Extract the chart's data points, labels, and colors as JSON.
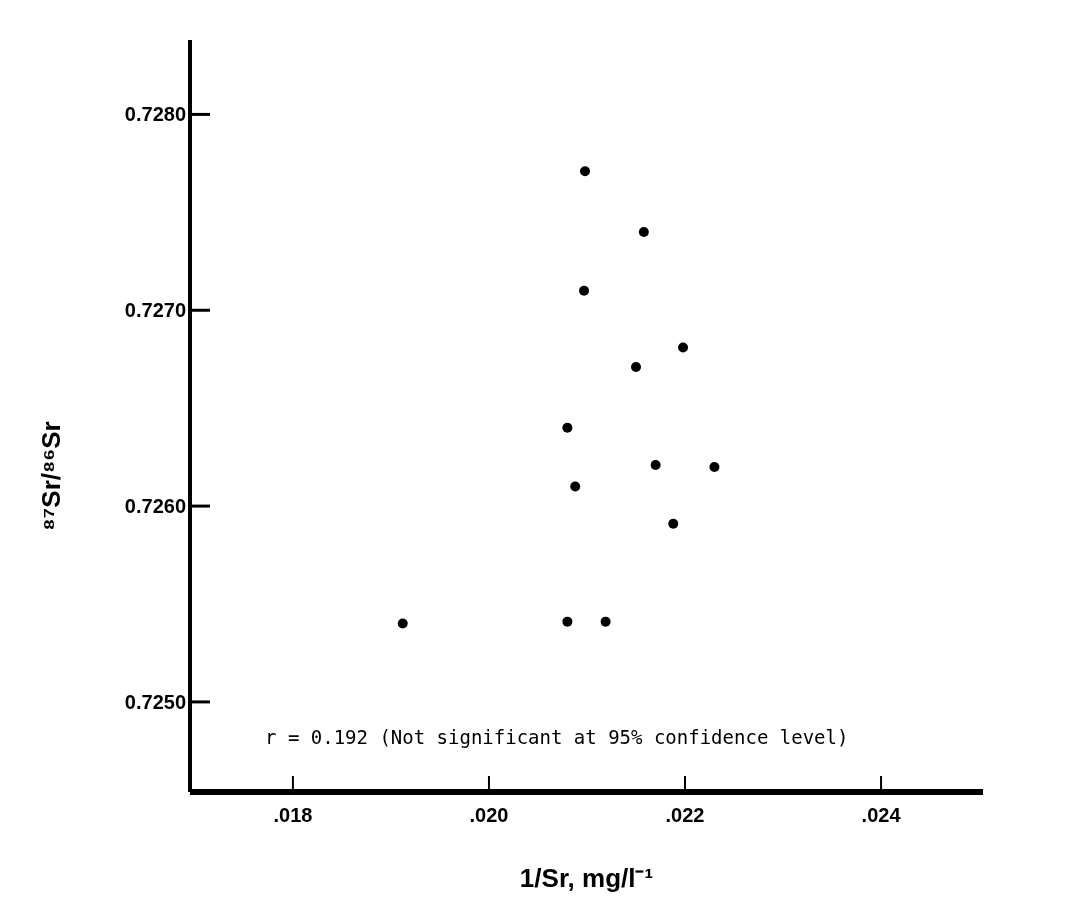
{
  "chart_data": {
    "type": "scatter",
    "xlabel": "1/Sr, mg/l⁻¹",
    "ylabel": "⁸⁷Sr/⁸⁶Sr",
    "x": [
      0.02098,
      0.02158,
      0.02097,
      0.02198,
      0.0215,
      0.0208,
      0.0217,
      0.0223,
      0.02088,
      0.02188,
      0.01912,
      0.0208,
      0.02119
    ],
    "series": [
      {
        "color": "#000000",
        "values": [
          0.72771,
          0.7274,
          0.7271,
          0.72681,
          0.72671,
          0.7264,
          0.72621,
          0.7262,
          0.7261,
          0.72591,
          0.7254,
          0.72541,
          0.72541
        ]
      }
    ],
    "xlim": [
      0.01695,
      0.02504
    ],
    "ylim": [
      0.72454,
      0.72838
    ],
    "xticks": [
      {
        "value": 0.018,
        "label": ".018"
      },
      {
        "value": 0.02,
        "label": ".020"
      },
      {
        "value": 0.022,
        "label": ".022"
      },
      {
        "value": 0.024,
        "label": ".024"
      }
    ],
    "yticks": [
      {
        "value": 0.725,
        "label": "0.7250"
      },
      {
        "value": 0.726,
        "label": "0.7260"
      },
      {
        "value": 0.727,
        "label": "0.7270"
      },
      {
        "value": 0.728,
        "label": "0.7280"
      }
    ],
    "marker": "circle",
    "grid": false,
    "annotations": [
      "r = 0.192 (Not significant at 95% confidence level)"
    ]
  }
}
